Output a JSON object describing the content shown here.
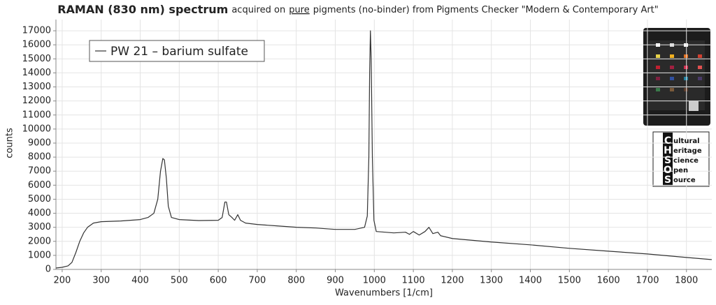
{
  "chart_data": {
    "type": "line",
    "title": "RAMAN (830 nm) spectrum",
    "subtitle_parts": [
      "acquired on",
      "pure",
      "pigments (no-binder) from Pigments Checker \"Modern & Contemporary Art\""
    ],
    "xlabel": "Wavenumbers [1/cm]",
    "ylabel": "counts",
    "x": [
      184,
      200,
      215,
      225,
      235,
      245,
      255,
      265,
      280,
      300,
      350,
      400,
      420,
      435,
      445,
      452,
      458,
      462,
      467,
      472,
      480,
      500,
      550,
      600,
      610,
      617,
      621,
      627,
      635,
      642,
      650,
      657,
      670,
      700,
      750,
      800,
      850,
      900,
      950,
      975,
      982,
      986,
      988,
      990,
      992,
      995,
      999,
      1005,
      1050,
      1080,
      1090,
      1100,
      1115,
      1130,
      1140,
      1150,
      1163,
      1170,
      1200,
      1300,
      1400,
      1500,
      1600,
      1700,
      1800,
      1865
    ],
    "series": [
      {
        "name": "PW 21 – barium sulfate",
        "color": "#333333",
        "values": [
          100,
          150,
          250,
          500,
          1200,
          2000,
          2600,
          3000,
          3300,
          3400,
          3450,
          3550,
          3700,
          4000,
          5000,
          7000,
          7900,
          7800,
          6500,
          4500,
          3700,
          3550,
          3480,
          3500,
          3700,
          4800,
          4800,
          3900,
          3700,
          3500,
          3900,
          3500,
          3300,
          3200,
          3100,
          3000,
          2950,
          2850,
          2850,
          3000,
          3800,
          8000,
          14000,
          17000,
          15000,
          8000,
          3500,
          2700,
          2600,
          2650,
          2500,
          2700,
          2450,
          2700,
          3000,
          2550,
          2650,
          2400,
          2200,
          1950,
          1750,
          1500,
          1300,
          1100,
          850,
          700
        ]
      }
    ],
    "xlim": [
      184,
      1865
    ],
    "ylim": [
      0,
      17800
    ],
    "xticks": [
      200,
      300,
      400,
      500,
      600,
      700,
      800,
      900,
      1000,
      1100,
      1200,
      1300,
      1400,
      1500,
      1600,
      1700,
      1800
    ],
    "yticks": [
      0,
      1000,
      2000,
      3000,
      4000,
      5000,
      6000,
      7000,
      8000,
      9000,
      10000,
      11000,
      12000,
      13000,
      14000,
      15000,
      16000,
      17000
    ],
    "grid": true,
    "legend": "upper left"
  },
  "logo": {
    "letters": [
      "C",
      "H",
      "S",
      "O",
      "S"
    ],
    "words": [
      "ultural",
      "eritage",
      "cience",
      "pen",
      "ource"
    ]
  }
}
